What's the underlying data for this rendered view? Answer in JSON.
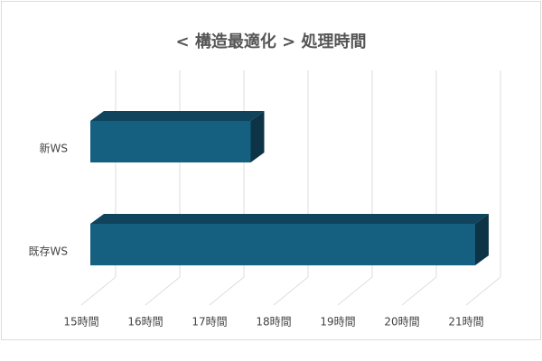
{
  "chart_data": {
    "type": "bar3d_horizontal",
    "title": "< 構造最適化 > 処理時間",
    "categories": [
      "新WS",
      "既存WS"
    ],
    "values": [
      17.5,
      21
    ],
    "color": "#155f80",
    "xlim": [
      15,
      21
    ],
    "xticks": [
      {
        "value": 15,
        "label": "15時間"
      },
      {
        "value": 16,
        "label": "16時間"
      },
      {
        "value": 17,
        "label": "17時間"
      },
      {
        "value": 18,
        "label": "18時間"
      },
      {
        "value": 19,
        "label": "19時間"
      },
      {
        "value": 20,
        "label": "20時間"
      },
      {
        "value": 21,
        "label": "21時間"
      }
    ],
    "grid": true
  }
}
